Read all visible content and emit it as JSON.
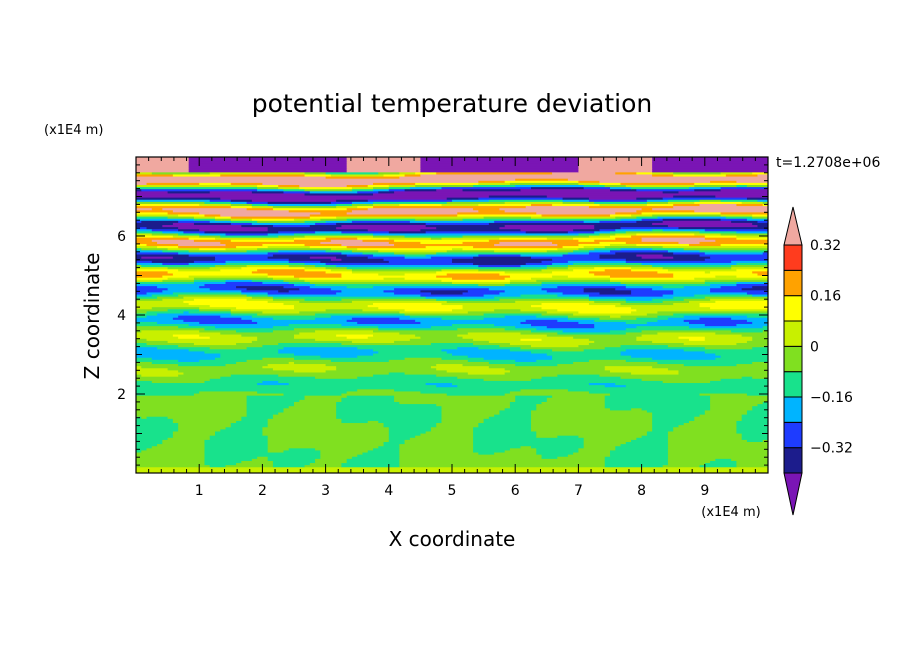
{
  "chart_data": {
    "type": "heatmap",
    "title": "potential temperature deviation",
    "xlabel": "X coordinate",
    "ylabel": "Z coordinate",
    "x_units": "(x1E4 m)",
    "y_units": "(x1E4 m)",
    "x_ticks": [
      "1",
      "2",
      "3",
      "4",
      "5",
      "6",
      "7",
      "8",
      "9"
    ],
    "y_ticks": [
      "2",
      "4",
      "6"
    ],
    "xlim": [
      0,
      10
    ],
    "ylim": [
      0,
      8
    ],
    "time_label": "t=1.2708e+06",
    "colorbar": {
      "labels": [
        "0.32",
        "0.16",
        "0",
        "-0.16",
        "-0.32"
      ],
      "levels": [
        -0.4,
        -0.32,
        -0.24,
        -0.16,
        -0.08,
        0,
        0.08,
        0.16,
        0.24,
        0.32,
        0.4
      ],
      "colors": [
        "#7a15b5",
        "#1c1c8c",
        "#1e3cff",
        "#00b4ff",
        "#18e28c",
        "#80e020",
        "#c8f000",
        "#ffff00",
        "#ffa200",
        "#ff3c1e",
        "#f0a8a0"
      ]
    },
    "field_description_levels": {
      "lower_layer_z": [
        0,
        2
      ],
      "lower_layer_values": [
        0,
        0.08
      ],
      "banded_layer_z": [
        2,
        8
      ],
      "banded_layer_range": [
        -0.4,
        0.4
      ]
    }
  }
}
